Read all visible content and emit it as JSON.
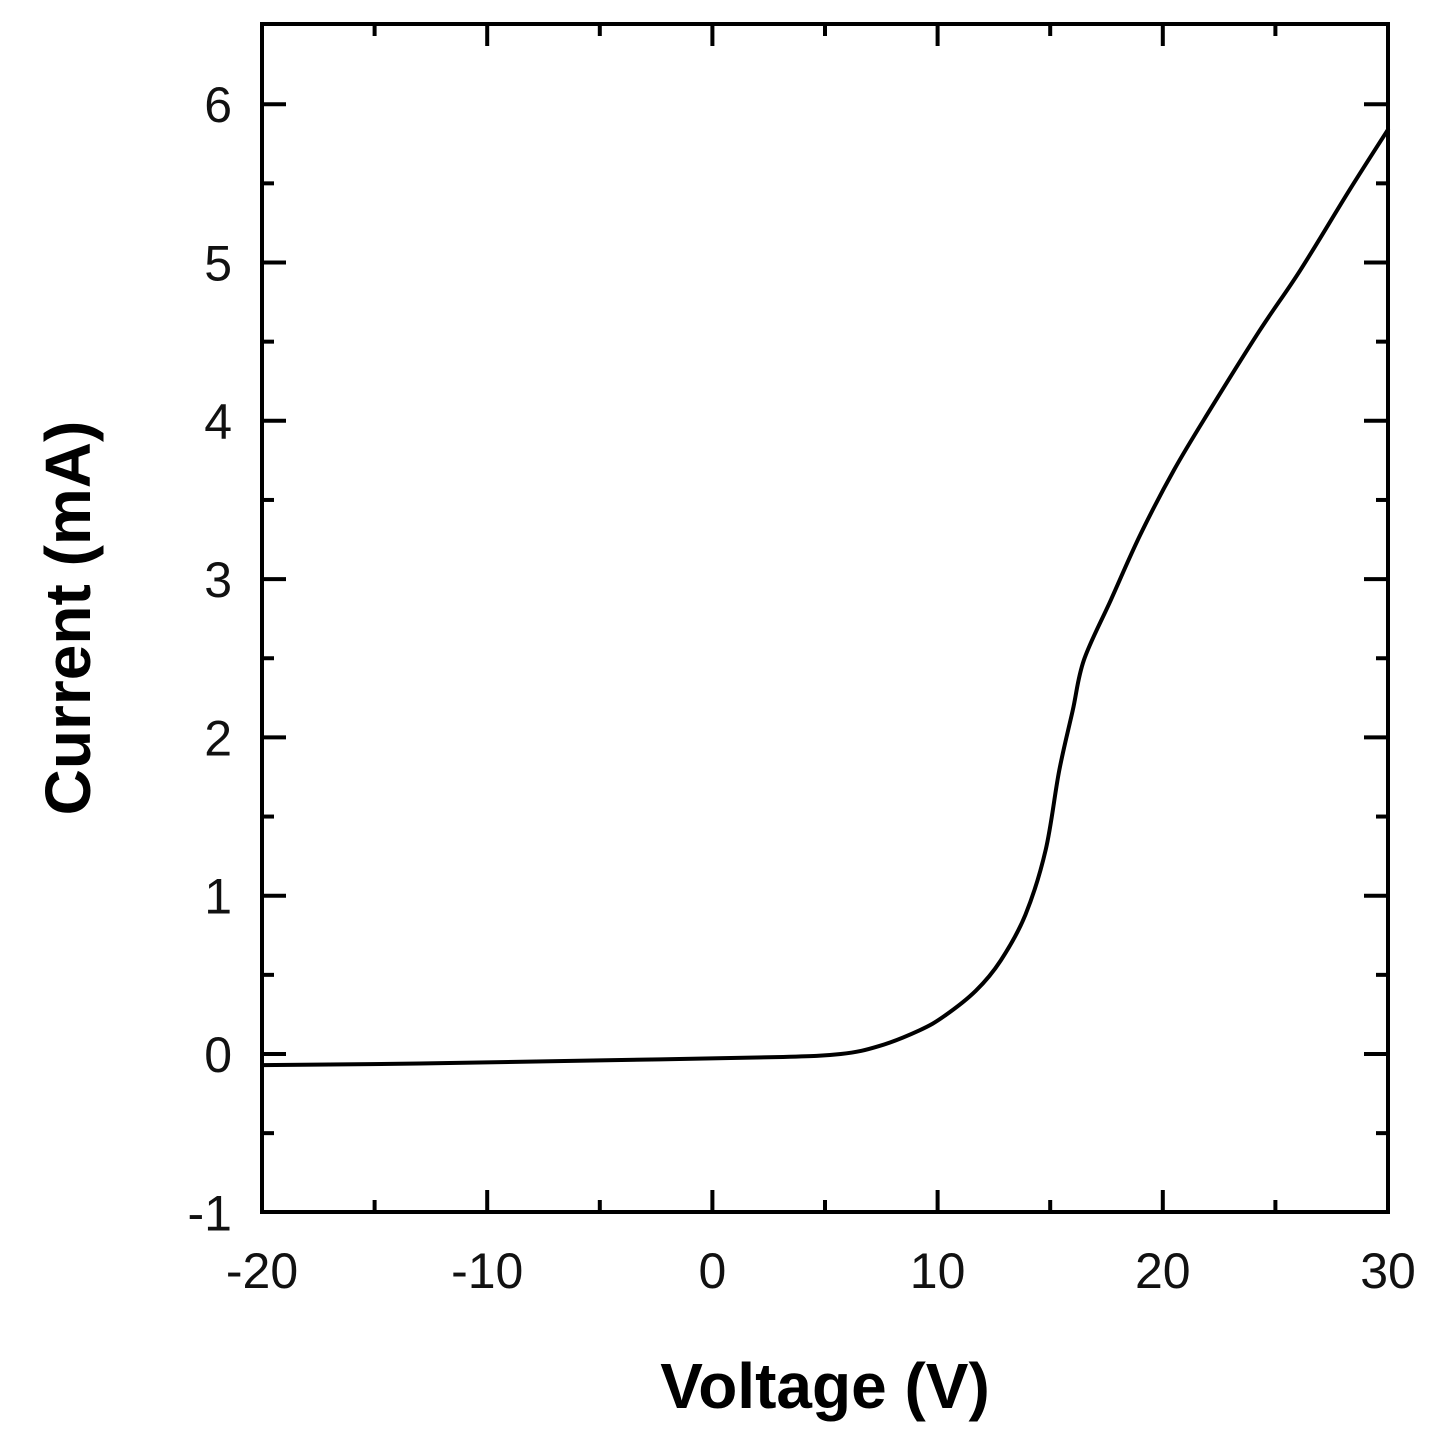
{
  "chart_data": {
    "type": "line",
    "title": "",
    "xlabel": "Voltage (V)",
    "ylabel": "Current (mA)",
    "xlim": [
      -20,
      30
    ],
    "ylim": [
      -1,
      6.5
    ],
    "xticks": [
      -20,
      -10,
      0,
      10,
      20,
      30
    ],
    "yticks": [
      -1,
      0,
      1,
      2,
      3,
      4,
      5,
      6
    ],
    "x_minor_step": 5,
    "y_minor_step": 0.5,
    "grid": false,
    "legend": null,
    "series": [
      {
        "name": "I-V curve",
        "color": "#000000",
        "x": [
          -20,
          -13,
          -5,
          2.8,
          5.7,
          7.4,
          9.2,
          10.3,
          11.7,
          12.8,
          13.9,
          14.8,
          15.4,
          16.0,
          16.5,
          17.7,
          19.0,
          20.5,
          22.1,
          24.3,
          26.1,
          28.3,
          30
        ],
        "y": [
          -0.07,
          -0.06,
          -0.04,
          -0.02,
          0.0,
          0.05,
          0.15,
          0.24,
          0.4,
          0.59,
          0.88,
          1.29,
          1.79,
          2.17,
          2.49,
          2.87,
          3.28,
          3.69,
          4.07,
          4.57,
          4.95,
          5.46,
          5.84
        ]
      }
    ]
  }
}
